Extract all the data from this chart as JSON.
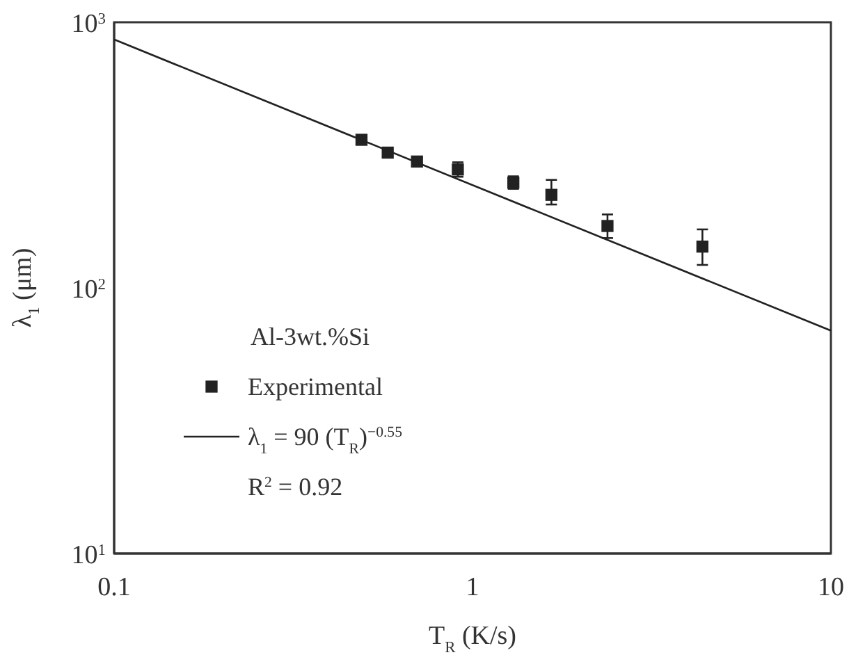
{
  "chart_data": {
    "type": "scatter",
    "xlabel": "T$_{R}$ (K/s)",
    "ylabel": "λ$_{1}$ (μm)",
    "legend_title": "Al-3wt.%Si",
    "log": "xy",
    "xlim": [
      0.1,
      10
    ],
    "ylim": [
      10,
      1000
    ],
    "xticks": [
      0.1,
      1,
      10
    ],
    "yticks": [
      {
        "value": 10,
        "label": "10$^{1}$"
      },
      {
        "value": 100,
        "label": "10$^{2}$"
      },
      {
        "value": 1000,
        "label": "10$^{3}$"
      }
    ],
    "grid": false,
    "legend": "bottom left",
    "annotations": [
      "R$^{2}$ = 0.92"
    ],
    "series": [
      {
        "name": "Experimental",
        "marker": "square",
        "color": "#222222",
        "x": [
          0.49,
          0.58,
          0.7,
          0.91,
          1.3,
          1.66,
          2.38,
          4.38
        ],
        "values": [
          361,
          323,
          299,
          279,
          249,
          224,
          171,
          143
        ],
        "errors": [
          null,
          null,
          null,
          [
            262,
            297
          ],
          [
            236,
            263
          ],
          [
            206,
            255
          ],
          [
            154,
            189
          ],
          [
            122,
            166
          ]
        ]
      },
      {
        "name": "λ$_{1}$ = 90 (T$_{R}$)$^{−0.55}$",
        "type": "line",
        "marker": "none",
        "line_style": "solid",
        "color": "#222222",
        "x": [
          0.1,
          10
        ],
        "values": [
          861,
          69
        ]
      }
    ]
  }
}
